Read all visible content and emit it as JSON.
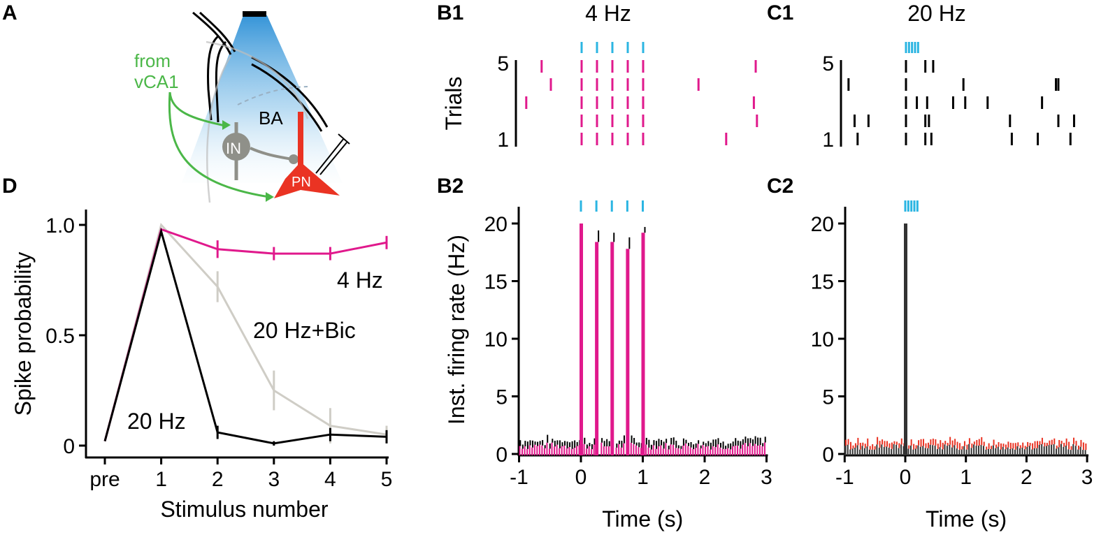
{
  "panels": {
    "A": "A",
    "B1": "B1",
    "C1": "C1",
    "D": "D",
    "B2": "B2",
    "C2": "C2"
  },
  "colors": {
    "magenta": "#e0198c",
    "cyan": "#2bb5e2",
    "green": "#4bb748",
    "red": "#ea3323",
    "gray": "#8f9089",
    "lightgray": "#cfcdc6",
    "black": "#000000"
  },
  "schematic": {
    "from_label": "from",
    "vca1_label": "vCA1",
    "ba_label": "BA",
    "in_label": "IN",
    "pn_label": "PN"
  },
  "chart_data": [
    {
      "id": "D",
      "type": "line",
      "xlabel": "Stimulus number",
      "ylabel": "Spike probability",
      "categories": [
        "pre",
        "1",
        "2",
        "3",
        "4",
        "5"
      ],
      "yticks": [
        "0",
        "0.5",
        "1.0"
      ],
      "ylim": [
        0,
        1.05
      ],
      "series": [
        {
          "name": "4 Hz",
          "values": [
            0.02,
            0.98,
            0.89,
            0.87,
            0.87,
            0.92
          ],
          "err": [
            0,
            0,
            0.04,
            0.03,
            0.03,
            0.03
          ]
        },
        {
          "name": "20 Hz+Bic",
          "values": [
            0.02,
            1.0,
            0.72,
            0.25,
            0.09,
            0.05
          ],
          "err": [
            0,
            0,
            0.07,
            0.09,
            0.08,
            0.04
          ]
        },
        {
          "name": "20 Hz",
          "values": [
            0.02,
            0.97,
            0.06,
            0.01,
            0.05,
            0.04
          ],
          "err": [
            0,
            0,
            0.03,
            0.01,
            0.03,
            0.03
          ]
        }
      ]
    },
    {
      "id": "B1",
      "type": "raster",
      "title": "4 Hz",
      "ylabel": "Trials",
      "yticks": [
        "1",
        "5"
      ],
      "xlim": [
        -1,
        3
      ],
      "stim_times": [
        0,
        0.25,
        0.5,
        0.75,
        1.0
      ],
      "trials": [
        [
          0,
          0.25,
          0.5,
          0.75,
          1.0,
          2.35
        ],
        [
          0,
          0.25,
          0.5,
          0.75,
          1.0,
          2.85
        ],
        [
          -0.9,
          0,
          0.25,
          0.5,
          0.75,
          1.0,
          2.8
        ],
        [
          -0.5,
          0,
          0.25,
          0.5,
          0.75,
          1.0,
          1.9
        ],
        [
          -0.65,
          0,
          0.25,
          0.5,
          0.75,
          1.0,
          2.83
        ]
      ]
    },
    {
      "id": "C1",
      "type": "raster",
      "title": "20 Hz",
      "yticks": [
        "1",
        "5"
      ],
      "xlim": [
        -1,
        3
      ],
      "stim_times": [
        0,
        0.05,
        0.1,
        0.15,
        0.2
      ],
      "trials": [
        [
          -0.8,
          0,
          0.32,
          0.42,
          1.75,
          2.18,
          2.72
        ],
        [
          -0.85,
          -0.62,
          0,
          0.32,
          0.38,
          1.72,
          2.52,
          2.78
        ],
        [
          0,
          0.18,
          0.35,
          0.78,
          0.98,
          1.35,
          2.25
        ],
        [
          -0.95,
          0,
          0.95,
          2.48,
          2.52
        ],
        [
          0,
          0.32,
          0.45
        ]
      ]
    },
    {
      "id": "B2",
      "type": "bar",
      "xlabel": "Time (s)",
      "ylabel": "Inst. firing rate (Hz)",
      "xticks": [
        "-1",
        "0",
        "1",
        "2",
        "3"
      ],
      "yticks": [
        "0",
        "5",
        "10",
        "15",
        "20"
      ],
      "xlim": [
        -1,
        3
      ],
      "ylim": [
        0,
        21
      ],
      "stim_times": [
        0,
        0.25,
        0.5,
        0.75,
        1.0
      ],
      "peaks": [
        {
          "t": 0,
          "value": 20,
          "err": 0
        },
        {
          "t": 0.25,
          "value": 18.4,
          "err": 1.0
        },
        {
          "t": 0.5,
          "value": 18.4,
          "err": 0.8
        },
        {
          "t": 0.75,
          "value": 17.8,
          "err": 1.0
        },
        {
          "t": 1.0,
          "value": 19.2,
          "err": 0.5
        }
      ],
      "baseline": {
        "value": 0.7,
        "err": 0.5
      }
    },
    {
      "id": "C2",
      "type": "bar",
      "xlabel": "Time (s)",
      "xticks": [
        "-1",
        "0",
        "1",
        "2",
        "3"
      ],
      "yticks": [
        "0",
        "5",
        "10",
        "15",
        "20"
      ],
      "xlim": [
        -1,
        3
      ],
      "ylim": [
        0,
        21
      ],
      "stim_times": [
        0,
        0.05,
        0.1,
        0.15,
        0.2
      ],
      "peaks": [
        {
          "t": 0,
          "value": 20,
          "err": 0
        }
      ],
      "baseline": {
        "value": 0.6,
        "err": 0.5
      }
    }
  ]
}
